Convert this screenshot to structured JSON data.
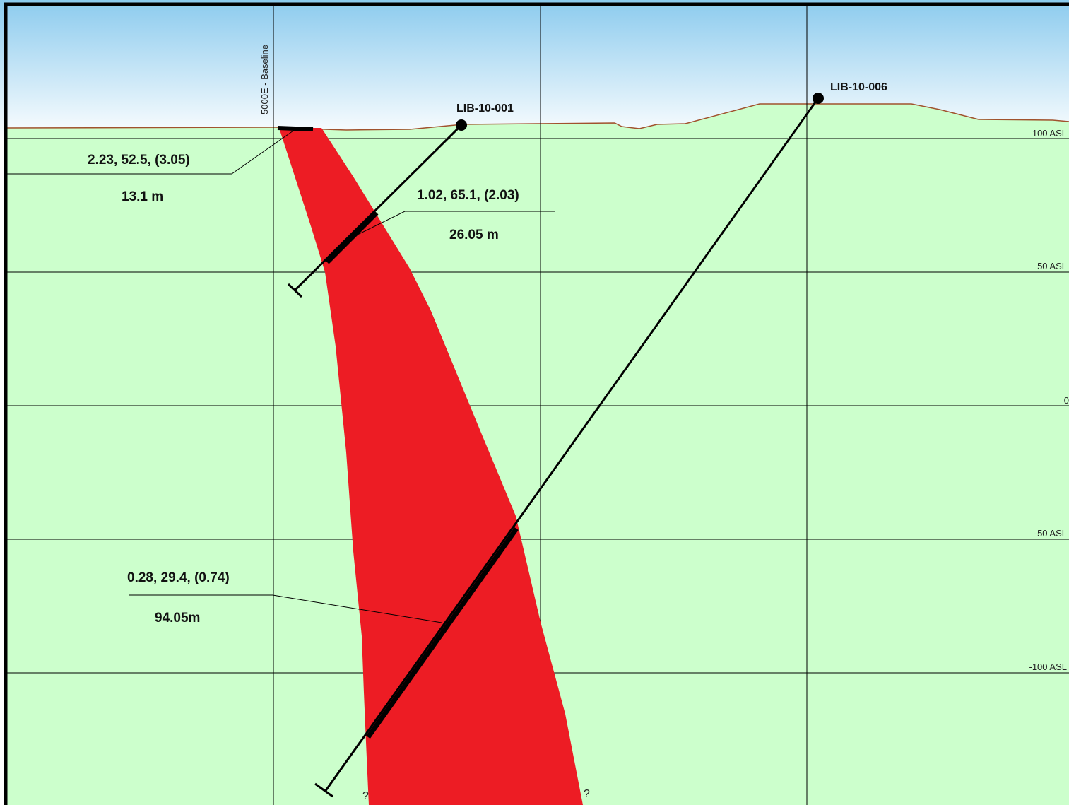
{
  "baseline": {
    "label": "5000E - Baseline"
  },
  "elevations": [
    {
      "label": "100 ASL",
      "value": 100
    },
    {
      "label": "50 ASL",
      "value": 50
    },
    {
      "label": "0",
      "value": 0
    },
    {
      "label": "-50 ASL",
      "value": -50
    },
    {
      "label": "-100 ASL",
      "value": -100
    }
  ],
  "holes": [
    {
      "id": "LIB-10-001"
    },
    {
      "id": "LIB-10-006"
    }
  ],
  "intercepts": [
    {
      "grade": "2.23, 52.5, (3.05)",
      "length": "13.1 m"
    },
    {
      "grade": "1.02, 65.1, (2.03)",
      "length": "26.05 m"
    },
    {
      "grade": "0.28, 29.4, (0.74)",
      "length": "94.05m"
    }
  ],
  "unknown_marks": [
    "?",
    "?"
  ],
  "colors": {
    "sky_top": "#8ccbee",
    "sky_bottom": "#ffffff",
    "ground": "#ccffcc",
    "vein": "#ed1c24",
    "topography": "#a0522d",
    "grid": "#000000"
  }
}
